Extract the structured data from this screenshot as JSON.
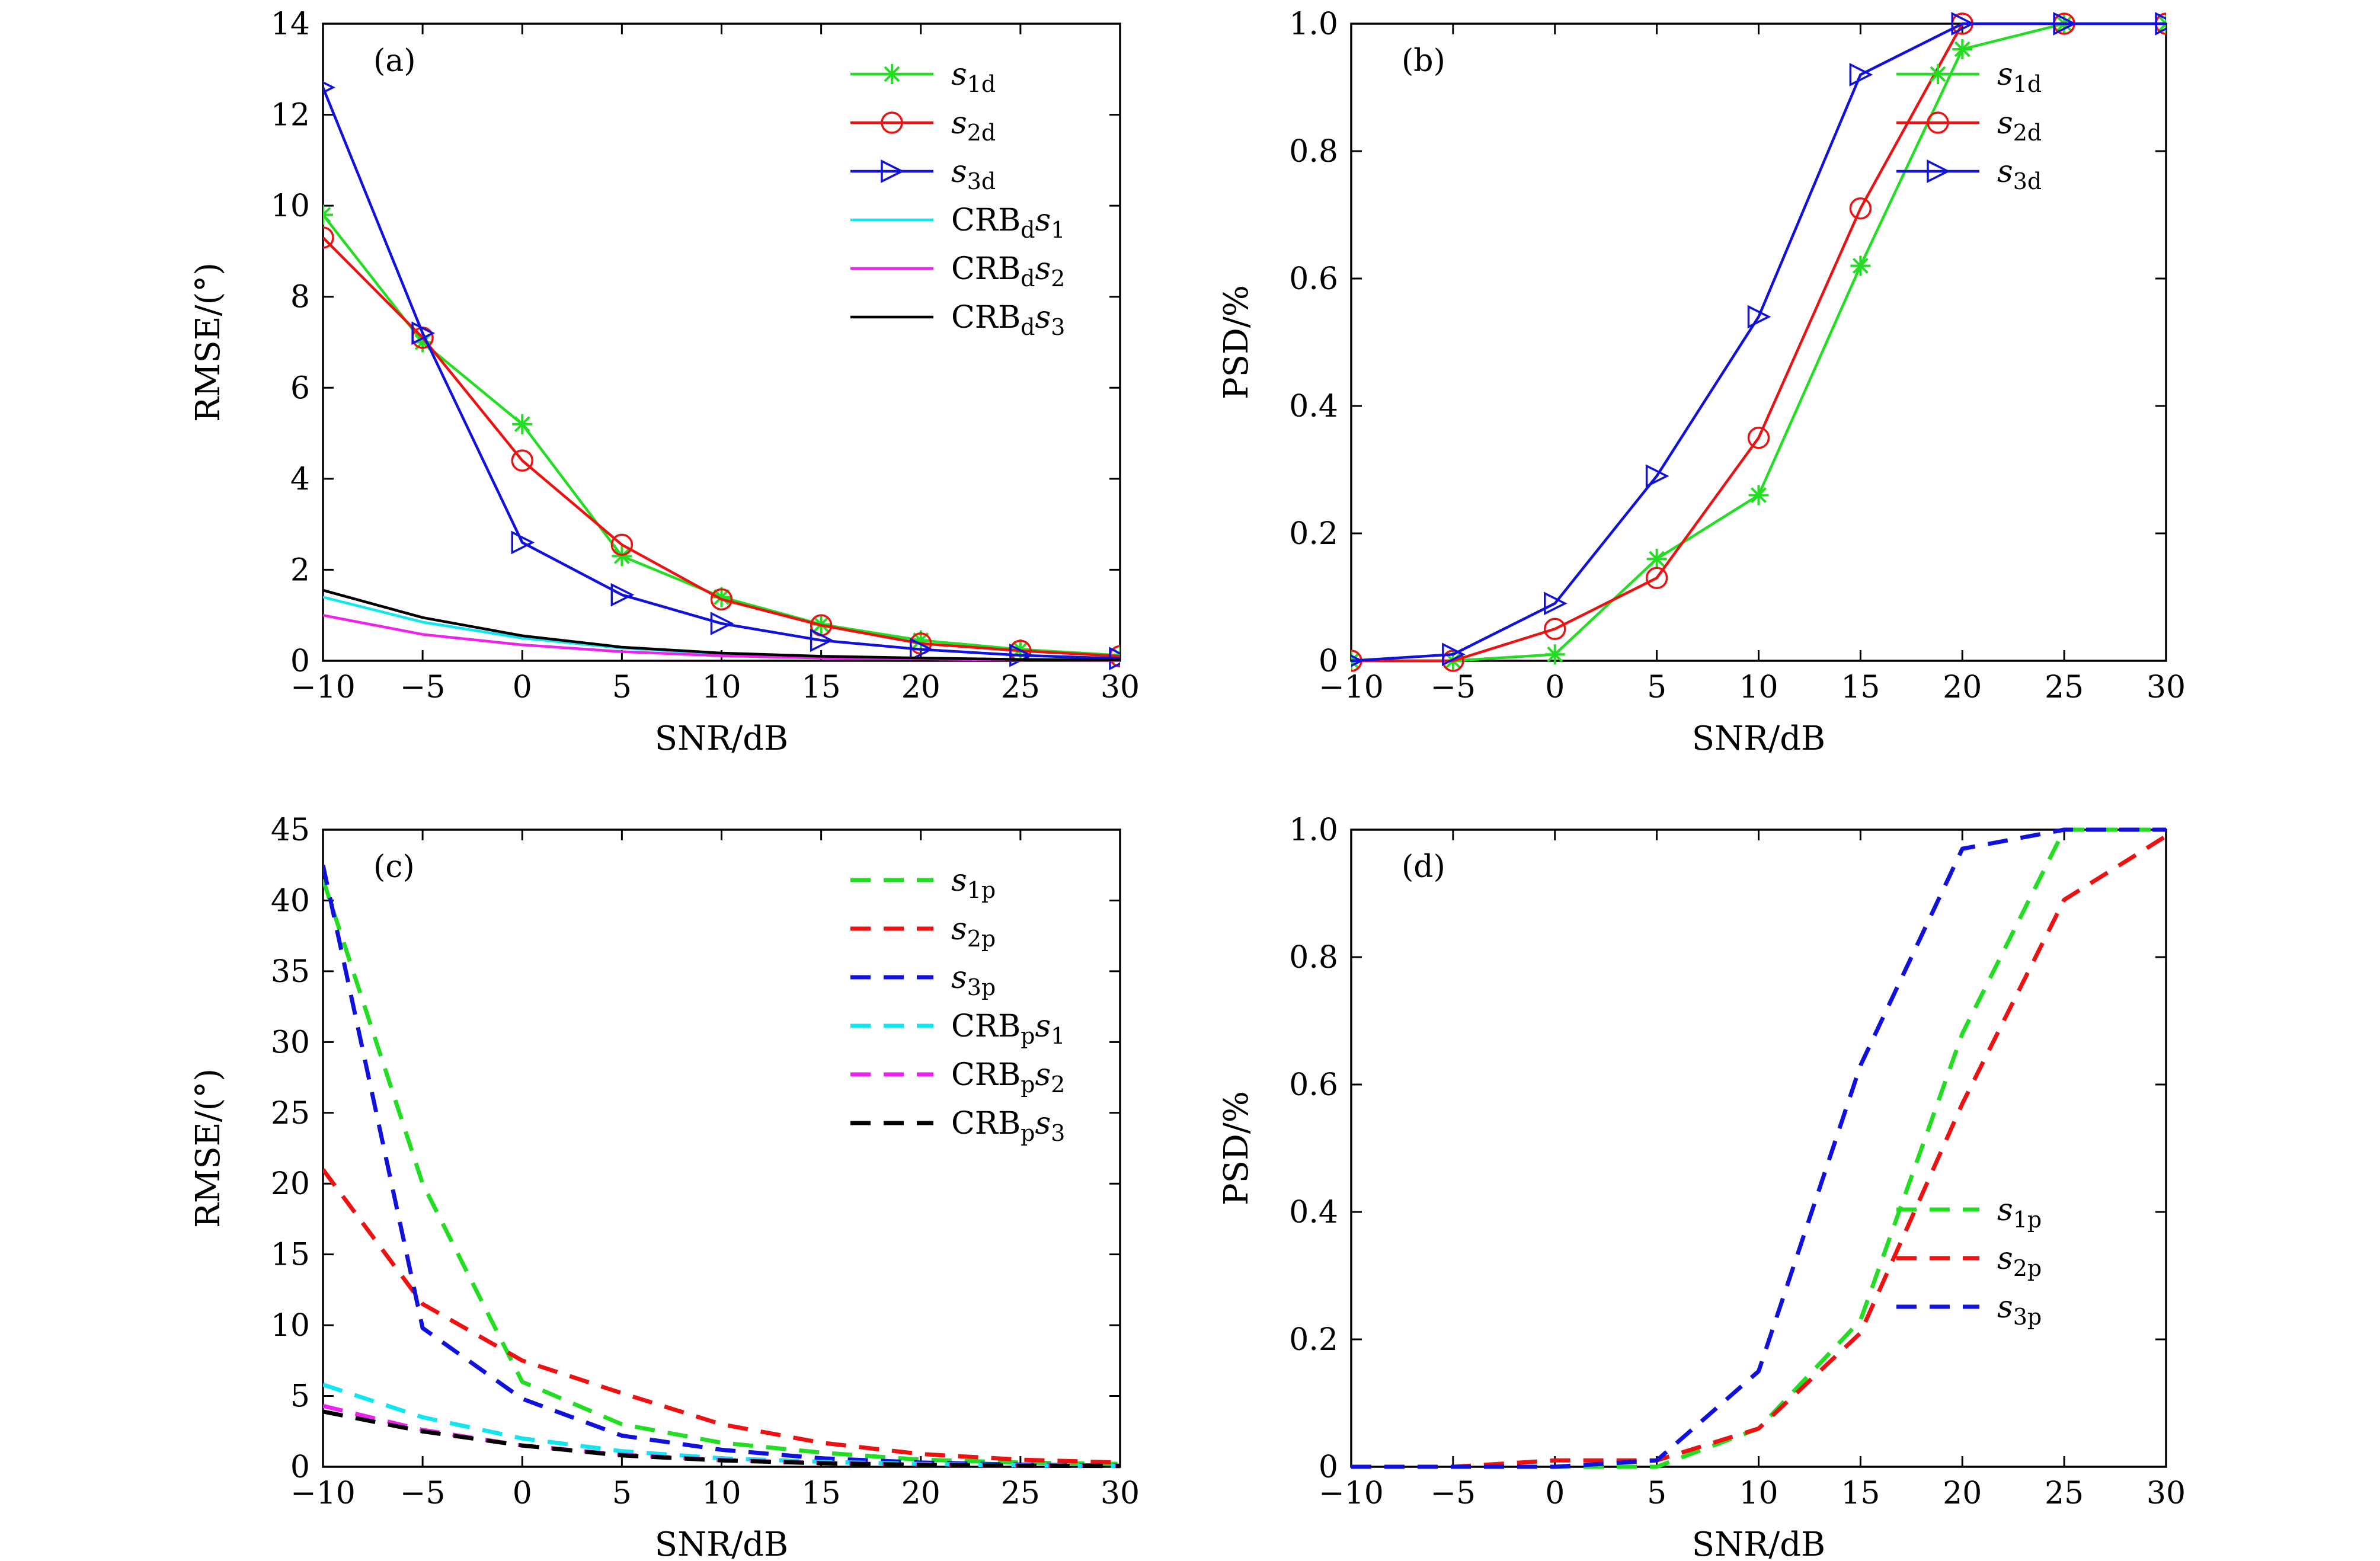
{
  "colors": {
    "s1": "#22dd22",
    "s2": "#ee1111",
    "s3": "#1111dd",
    "crb1": "#11e5f0",
    "crb2": "#ee22ee",
    "crb3": "#000000"
  },
  "chart_data": [
    {
      "type": "line",
      "panel_label": "(a)",
      "xlabel": "SNR/dB",
      "ylabel": "RMSE/(°)",
      "xlim": [
        -10,
        30
      ],
      "ylim": [
        0,
        14
      ],
      "xticks": [
        -10,
        -5,
        0,
        5,
        10,
        15,
        20,
        25,
        30
      ],
      "xtick_labels": [
        "−10",
        "−5",
        "0",
        "5",
        "10",
        "15",
        "20",
        "25",
        "30"
      ],
      "yticks": [
        0,
        2,
        4,
        6,
        8,
        10,
        12,
        14
      ],
      "ytick_labels": [
        "0",
        "2",
        "4",
        "6",
        "8",
        "10",
        "12",
        "14"
      ],
      "legend_position": "top-right",
      "x": [
        -10,
        -5,
        0,
        5,
        10,
        15,
        20,
        25,
        30
      ],
      "series": [
        {
          "name": "s1d",
          "name_main": "s",
          "name_sub": "1d",
          "color": "s1",
          "dash": "solid",
          "marker": "asterisk",
          "values": [
            9.8,
            7.0,
            5.2,
            2.3,
            1.4,
            0.8,
            0.45,
            0.25,
            0.12
          ]
        },
        {
          "name": "s2d",
          "name_main": "s",
          "name_sub": "2d",
          "color": "s2",
          "dash": "solid",
          "marker": "circle",
          "values": [
            9.3,
            7.1,
            4.4,
            2.55,
            1.35,
            0.78,
            0.38,
            0.22,
            0.1
          ]
        },
        {
          "name": "s3d",
          "name_main": "s",
          "name_sub": "3d",
          "color": "s3",
          "dash": "solid",
          "marker": "triangle",
          "values": [
            12.6,
            7.2,
            2.6,
            1.45,
            0.82,
            0.45,
            0.25,
            0.12,
            0.05
          ]
        },
        {
          "name": "CRBds1",
          "name_main": "CRB",
          "name_sub": "d",
          "name_tail": "s",
          "name_tail_sub": "1",
          "color": "crb1",
          "dash": "solid",
          "marker": "none",
          "values": [
            1.4,
            0.85,
            0.5,
            0.28,
            0.16,
            0.09,
            0.05,
            0.03,
            0.02
          ]
        },
        {
          "name": "CRBds2",
          "name_main": "CRB",
          "name_sub": "d",
          "name_tail": "s",
          "name_tail_sub": "2",
          "color": "crb2",
          "dash": "solid",
          "marker": "none",
          "values": [
            1.0,
            0.58,
            0.35,
            0.2,
            0.11,
            0.06,
            0.04,
            0.02,
            0.01
          ]
        },
        {
          "name": "CRBds3",
          "name_main": "CRB",
          "name_sub": "d",
          "name_tail": "s",
          "name_tail_sub": "3",
          "color": "crb3",
          "dash": "solid",
          "marker": "none",
          "values": [
            1.55,
            0.95,
            0.55,
            0.3,
            0.17,
            0.1,
            0.06,
            0.03,
            0.02
          ]
        }
      ]
    },
    {
      "type": "line",
      "panel_label": "(b)",
      "xlabel": "SNR/dB",
      "ylabel": "PSD/%",
      "xlim": [
        -10,
        30
      ],
      "ylim": [
        0,
        1
      ],
      "xticks": [
        -10,
        -5,
        0,
        5,
        10,
        15,
        20,
        25,
        30
      ],
      "xtick_labels": [
        "−10",
        "−5",
        "0",
        "5",
        "10",
        "15",
        "20",
        "25",
        "30"
      ],
      "yticks": [
        0,
        0.2,
        0.4,
        0.6,
        0.8,
        1.0
      ],
      "ytick_labels": [
        "0",
        "0.2",
        "0.4",
        "0.6",
        "0.8",
        "1.0"
      ],
      "legend_position": "top-right",
      "x": [
        -10,
        -5,
        0,
        5,
        10,
        15,
        20,
        25,
        30
      ],
      "series": [
        {
          "name": "s1d",
          "name_main": "s",
          "name_sub": "1d",
          "color": "s1",
          "dash": "solid",
          "marker": "asterisk",
          "values": [
            0,
            0,
            0.01,
            0.16,
            0.26,
            0.62,
            0.96,
            1.0,
            1.0
          ]
        },
        {
          "name": "s2d",
          "name_main": "s",
          "name_sub": "2d",
          "color": "s2",
          "dash": "solid",
          "marker": "circle",
          "values": [
            0,
            0,
            0.05,
            0.13,
            0.35,
            0.71,
            1.0,
            1.0,
            1.0
          ]
        },
        {
          "name": "s3d",
          "name_main": "s",
          "name_sub": "3d",
          "color": "s3",
          "dash": "solid",
          "marker": "triangle",
          "values": [
            0,
            0.01,
            0.09,
            0.29,
            0.54,
            0.92,
            1.0,
            1.0,
            1.0
          ]
        }
      ]
    },
    {
      "type": "line",
      "panel_label": "(c)",
      "xlabel": "SNR/dB",
      "ylabel": "RMSE/(°)",
      "xlim": [
        -10,
        30
      ],
      "ylim": [
        0,
        45
      ],
      "xticks": [
        -10,
        -5,
        0,
        5,
        10,
        15,
        20,
        25,
        30
      ],
      "xtick_labels": [
        "−10",
        "−5",
        "0",
        "5",
        "10",
        "15",
        "20",
        "25",
        "30"
      ],
      "yticks": [
        0,
        5,
        10,
        15,
        20,
        25,
        30,
        35,
        40,
        45
      ],
      "ytick_labels": [
        "0",
        "5",
        "10",
        "15",
        "20",
        "25",
        "30",
        "35",
        "40",
        "45"
      ],
      "legend_position": "top-right",
      "x": [
        -10,
        -5,
        0,
        5,
        10,
        15,
        20,
        25,
        30
      ],
      "series": [
        {
          "name": "s1p",
          "name_main": "s",
          "name_sub": "1p",
          "color": "s1",
          "dash": "dashed",
          "marker": "none",
          "values": [
            41.5,
            20.0,
            6.0,
            3.0,
            1.7,
            1.0,
            0.5,
            0.3,
            0.2
          ]
        },
        {
          "name": "s2p",
          "name_main": "s",
          "name_sub": "2p",
          "color": "s2",
          "dash": "dashed",
          "marker": "none",
          "values": [
            21.0,
            11.5,
            7.5,
            5.2,
            3.0,
            1.7,
            0.9,
            0.5,
            0.3
          ]
        },
        {
          "name": "s3p",
          "name_main": "s",
          "name_sub": "3p",
          "color": "s3",
          "dash": "dashed",
          "marker": "none",
          "values": [
            42.5,
            9.8,
            4.8,
            2.2,
            1.2,
            0.6,
            0.3,
            0.15,
            0.08
          ]
        },
        {
          "name": "CRBps1",
          "name_main": "CRB",
          "name_sub": "p",
          "name_tail": "s",
          "name_tail_sub": "1",
          "color": "crb1",
          "dash": "dashed",
          "marker": "none",
          "values": [
            5.8,
            3.5,
            2.0,
            1.1,
            0.6,
            0.35,
            0.2,
            0.1,
            0.06
          ]
        },
        {
          "name": "CRBps2",
          "name_main": "CRB",
          "name_sub": "p",
          "name_tail": "s",
          "name_tail_sub": "2",
          "color": "crb2",
          "dash": "dashed",
          "marker": "none",
          "values": [
            4.3,
            2.6,
            1.5,
            0.85,
            0.47,
            0.27,
            0.15,
            0.08,
            0.05
          ]
        },
        {
          "name": "CRBps3",
          "name_main": "CRB",
          "name_sub": "p",
          "name_tail": "s",
          "name_tail_sub": "3",
          "color": "crb3",
          "dash": "dashed",
          "marker": "none",
          "values": [
            3.9,
            2.5,
            1.5,
            0.8,
            0.45,
            0.25,
            0.14,
            0.08,
            0.05
          ]
        }
      ]
    },
    {
      "type": "line",
      "panel_label": "(d)",
      "xlabel": "SNR/dB",
      "ylabel": "PSD/%",
      "xlim": [
        -10,
        30
      ],
      "ylim": [
        0,
        1
      ],
      "xticks": [
        -10,
        -5,
        0,
        5,
        10,
        15,
        20,
        25,
        30
      ],
      "xtick_labels": [
        "−10",
        "−5",
        "0",
        "5",
        "10",
        "15",
        "20",
        "25",
        "30"
      ],
      "yticks": [
        0,
        0.2,
        0.4,
        0.6,
        0.8,
        1.0
      ],
      "ytick_labels": [
        "0",
        "0.2",
        "0.4",
        "0.6",
        "0.8",
        "1.0"
      ],
      "legend_position": "bottom-right",
      "x": [
        -10,
        -5,
        0,
        5,
        10,
        15,
        20,
        25,
        30
      ],
      "series": [
        {
          "name": "s1p",
          "name_main": "s",
          "name_sub": "1p",
          "color": "s1",
          "dash": "dashed",
          "marker": "none",
          "values": [
            0,
            0,
            0,
            0,
            0.06,
            0.23,
            0.68,
            1.0,
            1.0
          ]
        },
        {
          "name": "s2p",
          "name_main": "s",
          "name_sub": "2p",
          "color": "s2",
          "dash": "dashed",
          "marker": "none",
          "values": [
            0,
            0,
            0.01,
            0.01,
            0.06,
            0.21,
            0.57,
            0.89,
            0.99
          ]
        },
        {
          "name": "s3p",
          "name_main": "s",
          "name_sub": "3p",
          "color": "s3",
          "dash": "dashed",
          "marker": "none",
          "values": [
            0,
            0,
            0,
            0.01,
            0.15,
            0.63,
            0.97,
            1.0,
            1.0
          ]
        }
      ]
    }
  ]
}
